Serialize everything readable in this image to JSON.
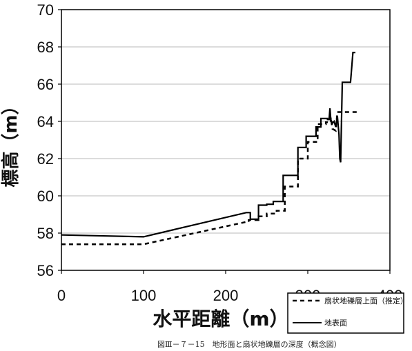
{
  "chart_data": {
    "type": "line",
    "xlabel": "水平距離（m）",
    "ylabel": "標高（m）",
    "xlim": [
      0,
      400
    ],
    "ylim": [
      56,
      70
    ],
    "x_ticks": [
      "0",
      "100",
      "200",
      "300",
      "400"
    ],
    "y_ticks": [
      "56",
      "58",
      "60",
      "62",
      "64",
      "66",
      "68",
      "70"
    ],
    "grid": "horizontal",
    "legend_position": "bottom-right",
    "series": [
      {
        "name": "扇状地礫層上面（推定）",
        "style": "dashed",
        "color": "#000000",
        "points": [
          [
            0,
            57.4
          ],
          [
            100,
            57.4
          ],
          [
            225,
            58.6
          ],
          [
            228,
            58.6
          ],
          [
            228,
            58.7
          ],
          [
            240,
            58.7
          ],
          [
            240,
            58.9
          ],
          [
            250,
            58.9
          ],
          [
            250,
            59.05
          ],
          [
            262,
            59.05
          ],
          [
            262,
            59.2
          ],
          [
            272,
            59.2
          ],
          [
            272,
            60.5
          ],
          [
            288,
            60.5
          ],
          [
            288,
            62.0
          ],
          [
            300,
            62.0
          ],
          [
            300,
            62.9
          ],
          [
            312,
            62.9
          ],
          [
            312,
            63.85
          ],
          [
            322,
            63.85
          ],
          [
            322,
            63.95
          ],
          [
            328,
            63.95
          ],
          [
            328,
            64.2
          ],
          [
            330,
            63.6
          ],
          [
            334,
            63.5
          ],
          [
            336,
            64.5
          ],
          [
            343,
            64.5
          ],
          [
            343,
            64.5
          ],
          [
            360,
            64.5
          ]
        ]
      },
      {
        "name": "地表面",
        "style": "solid",
        "color": "#000000",
        "points": [
          [
            0,
            57.9
          ],
          [
            100,
            57.8
          ],
          [
            225,
            59.1
          ],
          [
            230,
            59.1
          ],
          [
            230,
            58.75
          ],
          [
            240,
            58.75
          ],
          [
            240,
            59.5
          ],
          [
            250,
            59.5
          ],
          [
            250,
            59.55
          ],
          [
            258,
            59.55
          ],
          [
            258,
            59.7
          ],
          [
            270,
            59.7
          ],
          [
            270,
            61.1
          ],
          [
            288,
            61.1
          ],
          [
            288,
            62.6
          ],
          [
            298,
            62.6
          ],
          [
            298,
            63.2
          ],
          [
            310,
            63.2
          ],
          [
            310,
            63.7
          ],
          [
            316,
            63.7
          ],
          [
            316,
            64.15
          ],
          [
            324,
            64.15
          ],
          [
            324,
            64.1
          ],
          [
            326,
            64.1
          ],
          [
            327,
            64.7
          ],
          [
            328,
            64.1
          ],
          [
            330,
            63.9
          ],
          [
            332,
            64.0
          ],
          [
            334,
            63.7
          ],
          [
            336,
            64.3
          ],
          [
            338,
            63.3
          ],
          [
            339,
            62.0
          ],
          [
            340,
            61.8
          ],
          [
            342,
            66.1
          ],
          [
            352,
            66.1
          ],
          [
            352,
            66.1
          ],
          [
            355,
            67.7
          ],
          [
            358,
            67.7
          ]
        ]
      }
    ]
  },
  "legend": {
    "items": [
      {
        "label": "扇状地礫層上面（推定）",
        "style": "dashed"
      },
      {
        "label": "地表面",
        "style": "solid"
      }
    ]
  },
  "caption": "図Ⅲ－７－15　地形面と扇状地礫層の深度（概念図）"
}
